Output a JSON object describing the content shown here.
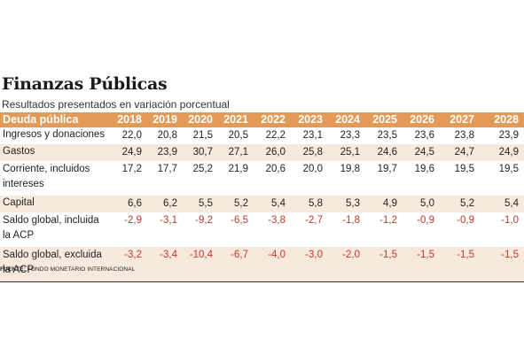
{
  "title": "Finanzas Públicas",
  "subtitle": "Resultados presentados en variación porcentual",
  "table": {
    "headers": [
      "Deuda pública",
      "2018",
      "2019",
      "2020",
      "2021",
      "2022",
      "2023",
      "2024",
      "2025",
      "2026",
      "2027",
      "2028"
    ],
    "rows": [
      {
        "label": "Ingresos y donaciones",
        "values": [
          "22,0",
          "20,8",
          "21,5",
          "20,5",
          "22,2",
          "23,1",
          "23,3",
          "23,5",
          "23,6",
          "23,8",
          "23,9"
        ]
      },
      {
        "label": "Gastos",
        "values": [
          "24,9",
          "23,9",
          "30,7",
          "27,1",
          "26,0",
          "25,8",
          "25,1",
          "24,6",
          "24,5",
          "24,7",
          "24,9"
        ]
      },
      {
        "label": "Corriente, incluidos intereses",
        "values": [
          "17,2",
          "17,7",
          "25,2",
          "21,9",
          "20,6",
          "20,0",
          "19,8",
          "19,7",
          "19,6",
          "19,5",
          "19,5"
        ]
      },
      {
        "label": "Capital",
        "values": [
          "6,6",
          "6,2",
          "5,5",
          "5,2",
          "5,4",
          "5,8",
          "5,3",
          "4,9",
          "5,0",
          "5,2",
          "5,4"
        ]
      },
      {
        "label": "Saldo global, incluida la ACP",
        "values": [
          "-2,9",
          "-3,1",
          "-9,2",
          "-6,5",
          "-3,8",
          "-2,7",
          "-1,8",
          "-1,2",
          "-0,9",
          "-0,9",
          "-1,0"
        ]
      },
      {
        "label": "Saldo global, excluida la ACP",
        "values": [
          "-3,2",
          "-3,4",
          "-10,4",
          "-6,7",
          "-4,0",
          "-3,0",
          "-2,0",
          "-1,5",
          "-1,5",
          "-1,5",
          "-1,5"
        ]
      }
    ]
  },
  "source": {
    "label": "FUENTE:",
    "text": "FONDO MONETARIO INTERNACIONAL"
  },
  "colors": {
    "header_bg": "#e39a57",
    "shade_bg": "#f7eadc",
    "negative": "#c0392b"
  }
}
